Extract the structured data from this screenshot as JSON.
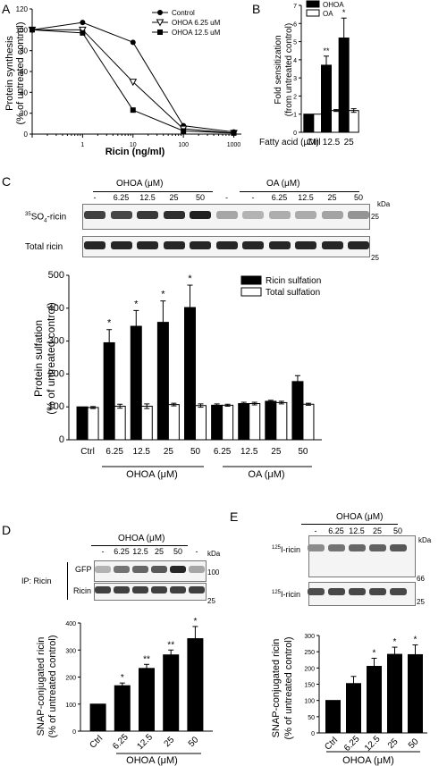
{
  "panel_letters": {
    "a": "A",
    "b": "B",
    "c": "C",
    "d": "D",
    "e": "E"
  },
  "panelA": {
    "ylabel_line1": "Protein synthesis",
    "ylabel_line2": "(% of untreated control)",
    "xlabel": "Ricin (ng/ml)",
    "legend": [
      "Control",
      "OHOA 6.25 uM",
      "OHOA 12.5 uM"
    ]
  },
  "panelB": {
    "ylabel_line1": "Fold sensitization",
    "ylabel_line2": "(from untreated control)",
    "xaxis_prefix": "Fatty acid (μM)",
    "legend": [
      "OHOA",
      "OA"
    ]
  },
  "panelC": {
    "group_labels": [
      "OHOA (μM)",
      "OA (μM)"
    ],
    "lane_labels": [
      "-",
      "6.25",
      "12.5",
      "25",
      "50",
      "-",
      "-",
      "6.25",
      "12.5",
      "25",
      "50"
    ],
    "row_labels": [
      "35SO4-ricin",
      "Total ricin"
    ],
    "row1_sup": "35",
    "row1_base": "SO",
    "row1_sub": "4",
    "row1_tail": "-ricin",
    "kda": "kDa",
    "marker": "25",
    "ylabel_line1": "Protein sulfation",
    "ylabel_line2": "(% of untreated control)",
    "legend": [
      "Ricin sulfation",
      "Total sulfation"
    ],
    "x_group_labels": [
      "OHOA (μM)",
      "OA (μM)"
    ]
  },
  "panelD": {
    "group_label": "OHOA (μM)",
    "lane_labels": [
      "-",
      "6.25",
      "12.5",
      "25",
      "50",
      "-"
    ],
    "ip_label": "IP: Ricin",
    "row_labels": [
      "GFP",
      "Ricin"
    ],
    "kda": "kDa",
    "markers": [
      "100",
      "25"
    ],
    "ylabel_line1": "SNAP-conjugated ricin",
    "ylabel_line2": "(% of untreated control)",
    "x_group_label": "OHOA (μM)"
  },
  "panelE": {
    "group_label": "OHOA (μM)",
    "lane_labels": [
      "-",
      "6.25",
      "12.5",
      "25",
      "50"
    ],
    "row_sup": "125",
    "row_tail": "I-ricin",
    "kda": "kDa",
    "markers": [
      "66",
      "25"
    ],
    "ylabel_line1": "SNAP-conjugated ricin",
    "ylabel_line2": "(% of untreated control)",
    "x_group_label": "OHOA (μM)"
  },
  "chart_data": [
    {
      "id": "A",
      "type": "line",
      "x": [
        0.1,
        1,
        10,
        100,
        1000
      ],
      "xticks": [
        "1",
        "10",
        "100",
        "1000"
      ],
      "xscale": "log",
      "ylim": [
        0,
        120
      ],
      "yticks": [
        0,
        20,
        40,
        60,
        80,
        100,
        120
      ],
      "xlabel": "Ricin (ng/ml)",
      "ylabel": "Protein synthesis (% of untreated control)",
      "legend_position": "top-right",
      "series": [
        {
          "name": "Control",
          "marker": "circle-filled",
          "values": [
            100,
            107,
            88,
            8,
            2
          ]
        },
        {
          "name": "OHOA 6.25 uM",
          "marker": "triangle-open",
          "values": [
            100,
            100,
            50,
            5,
            1
          ]
        },
        {
          "name": "OHOA 12.5 uM",
          "marker": "square-filled",
          "values": [
            100,
            97,
            23,
            3,
            1
          ]
        }
      ]
    },
    {
      "id": "B",
      "type": "bar",
      "categories": [
        "Ctrl",
        "12.5",
        "25"
      ],
      "ylim": [
        0,
        7
      ],
      "yticks": [
        0,
        1,
        2,
        3,
        4,
        5,
        6,
        7
      ],
      "ylabel": "Fold sensitization (from untreated control)",
      "legend_position": "top-left",
      "series": [
        {
          "name": "OHOA",
          "color": "#000000",
          "values": [
            1,
            3.7,
            5.2
          ],
          "errors": [
            0,
            0.5,
            1.1
          ]
        },
        {
          "name": "OA",
          "color": "#ffffff",
          "values": [
            1,
            1.2,
            1.2
          ],
          "errors": [
            0,
            0.05,
            0.1
          ]
        }
      ],
      "annotations": [
        {
          "category": "12.5",
          "text": "**"
        },
        {
          "category": "25",
          "text": "*"
        }
      ]
    },
    {
      "id": "C",
      "type": "bar",
      "categories": [
        "Ctrl",
        "6.25",
        "12.5",
        "25",
        "50",
        "6.25",
        "12.5",
        "25",
        "50"
      ],
      "ylim": [
        0,
        500
      ],
      "yticks": [
        0,
        100,
        200,
        300,
        400,
        500
      ],
      "ylabel": "Protein sulfation (% of untreated control)",
      "legend_position": "top-right",
      "series": [
        {
          "name": "Ricin sulfation",
          "color": "#000000",
          "values": [
            100,
            295,
            345,
            357,
            402,
            105,
            110,
            117,
            177
          ],
          "errors": [
            0,
            40,
            48,
            65,
            68,
            4,
            4,
            3,
            18
          ]
        },
        {
          "name": "Total sulfation",
          "color": "#ffffff",
          "values": [
            98,
            102,
            102,
            107,
            104,
            105,
            110,
            113,
            108
          ],
          "errors": [
            3,
            6,
            7,
            4,
            5,
            3,
            4,
            4,
            3
          ]
        }
      ],
      "annotations": [
        {
          "category_index": 1,
          "text": "*"
        },
        {
          "category_index": 2,
          "text": "*"
        },
        {
          "category_index": 3,
          "text": "*"
        },
        {
          "category_index": 4,
          "text": "*"
        }
      ]
    },
    {
      "id": "D",
      "type": "bar",
      "categories": [
        "Ctrl",
        "6.25",
        "12.5",
        "25",
        "50"
      ],
      "ylim": [
        0,
        400
      ],
      "yticks": [
        0,
        100,
        200,
        300,
        400
      ],
      "ylabel": "SNAP-conjugated ricin (% of untreated control)",
      "series": [
        {
          "name": "",
          "color": "#000000",
          "values": [
            100,
            168,
            232,
            282,
            342
          ],
          "errors": [
            0,
            10,
            15,
            18,
            45
          ]
        }
      ],
      "annotations": [
        "",
        "*",
        "**",
        "**",
        "*"
      ]
    },
    {
      "id": "E",
      "type": "bar",
      "categories": [
        "Ctrl",
        "6.25",
        "12.5",
        "25",
        "50"
      ],
      "ylim": [
        0,
        300
      ],
      "yticks": [
        0,
        50,
        100,
        150,
        200,
        250,
        300
      ],
      "ylabel": "SNAP-conjugated ricin (% of untreated control)",
      "series": [
        {
          "name": "",
          "color": "#000000",
          "values": [
            100,
            152,
            205,
            242,
            241
          ],
          "errors": [
            0,
            22,
            25,
            22,
            30
          ]
        }
      ],
      "annotations": [
        "",
        "",
        "*",
        "*",
        "*"
      ]
    }
  ]
}
